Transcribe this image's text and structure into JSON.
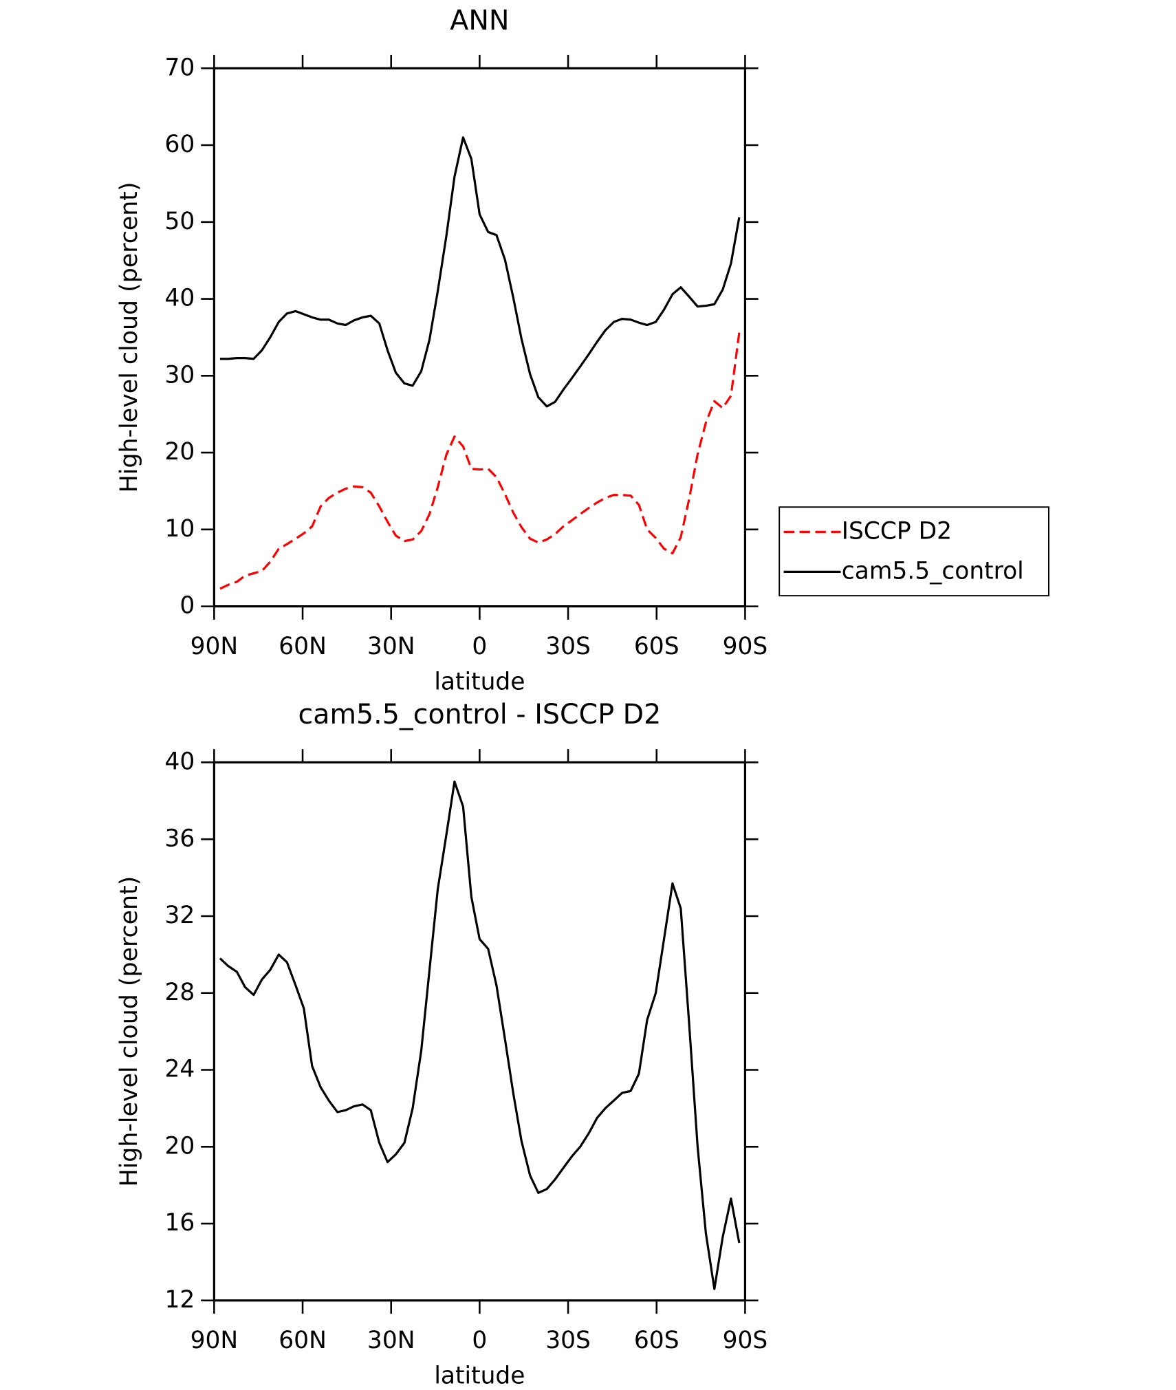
{
  "chart_data": [
    {
      "type": "line",
      "title": "ANN",
      "xlabel": "latitude",
      "ylabel": "High-level cloud (percent)",
      "x": [
        88,
        85.2,
        82.3,
        79.5,
        76.6,
        73.8,
        71.0,
        68.1,
        65.3,
        62.4,
        59.6,
        56.8,
        53.9,
        51.1,
        48.2,
        45.4,
        42.6,
        39.7,
        36.9,
        34.0,
        31.2,
        28.4,
        25.5,
        22.7,
        19.8,
        17.0,
        14.2,
        11.3,
        8.5,
        5.6,
        2.8,
        0.0,
        -2.9,
        -5.7,
        -8.6,
        -11.4,
        -14.2,
        -17.1,
        -19.9,
        -22.8,
        -25.6,
        -28.4,
        -31.3,
        -34.1,
        -37.0,
        -39.8,
        -42.6,
        -45.5,
        -48.3,
        -51.2,
        -54.0,
        -56.8,
        -59.7,
        -62.5,
        -65.4,
        -68.2,
        -71.0,
        -73.9,
        -76.7,
        -79.6,
        -82.4,
        -85.2,
        -88.0
      ],
      "series": [
        {
          "name": "ISCCP D2",
          "color": "#ff0000",
          "dash": true,
          "values": [
            2.3,
            2.8,
            3.2,
            4.0,
            4.3,
            4.6,
            5.8,
            7.5,
            8.1,
            8.8,
            9.5,
            10.4,
            13.0,
            14.1,
            14.8,
            15.3,
            15.6,
            15.5,
            14.8,
            13.0,
            11.0,
            9.2,
            8.5,
            8.7,
            9.8,
            12.0,
            15.5,
            19.7,
            22.1,
            20.8,
            17.9,
            17.8,
            17.9,
            16.8,
            14.6,
            12.2,
            10.3,
            8.8,
            8.3,
            8.7,
            9.4,
            10.4,
            11.2,
            12.0,
            12.8,
            13.5,
            14.1,
            14.5,
            14.5,
            14.4,
            13.2,
            10.0,
            8.9,
            7.5,
            6.9,
            9.0,
            13.9,
            19.8,
            23.9,
            26.7,
            25.8,
            27.4,
            35.6
          ]
        },
        {
          "name": "cam5.5_control",
          "color": "#000000",
          "dash": false,
          "values": [
            32.2,
            32.2,
            32.3,
            32.3,
            32.2,
            33.3,
            35.0,
            37.0,
            38.1,
            38.4,
            38.0,
            37.6,
            37.3,
            37.3,
            36.8,
            36.6,
            37.2,
            37.6,
            37.8,
            36.8,
            33.3,
            30.4,
            29.0,
            28.7,
            30.6,
            34.7,
            41.0,
            48.1,
            55.9,
            61.0,
            58.2,
            51.0,
            48.7,
            48.3,
            45.1,
            40.2,
            34.8,
            30.2,
            27.2,
            26.0,
            26.6,
            28.2,
            29.7,
            31.2,
            32.8,
            34.4,
            35.9,
            37.0,
            37.4,
            37.3,
            36.9,
            36.6,
            37.0,
            38.6,
            40.6,
            41.5,
            40.3,
            39.0,
            39.1,
            39.3,
            41.2,
            44.6,
            50.6
          ]
        }
      ],
      "xlim": [
        90,
        -90
      ],
      "xticks": [
        {
          "value": 90,
          "label": "90N"
        },
        {
          "value": 60,
          "label": "60N"
        },
        {
          "value": 30,
          "label": "30N"
        },
        0,
        {
          "value": -30,
          "label": "30S"
        },
        {
          "value": -60,
          "label": "60S"
        },
        {
          "value": -90,
          "label": "90S"
        }
      ],
      "ylim": [
        0,
        70
      ],
      "yticks": [
        0,
        10,
        20,
        30,
        40,
        50,
        60,
        70
      ],
      "legend": "right"
    },
    {
      "type": "line",
      "title": "cam5.5_control - ISCCP D2",
      "xlabel": "latitude",
      "ylabel": "High-level cloud (percent)",
      "x": [
        88,
        85.2,
        82.3,
        79.5,
        76.6,
        73.8,
        71.0,
        68.1,
        65.3,
        62.4,
        59.6,
        56.8,
        53.9,
        51.1,
        48.2,
        45.4,
        42.6,
        39.7,
        36.9,
        34.0,
        31.2,
        28.4,
        25.5,
        22.7,
        19.8,
        17.0,
        14.2,
        11.3,
        8.5,
        5.6,
        2.8,
        0.0,
        -2.9,
        -5.7,
        -8.6,
        -11.4,
        -14.2,
        -17.1,
        -19.9,
        -22.8,
        -25.6,
        -28.4,
        -31.3,
        -34.1,
        -37.0,
        -39.8,
        -42.6,
        -45.5,
        -48.3,
        -51.2,
        -54.0,
        -56.8,
        -59.7,
        -62.5,
        -65.4,
        -68.2,
        -71.0,
        -73.9,
        -76.7,
        -79.6,
        -82.4,
        -85.2,
        -88.0
      ],
      "color": "#000000",
      "values": [
        29.8,
        29.4,
        29.1,
        28.3,
        27.9,
        28.7,
        29.2,
        30.0,
        29.6,
        28.4,
        27.2,
        24.2,
        23.1,
        22.4,
        21.8,
        21.9,
        22.1,
        22.2,
        21.9,
        20.2,
        19.2,
        19.6,
        20.2,
        22.0,
        25.0,
        29.2,
        33.4,
        36.2,
        39.0,
        37.7,
        33.0,
        30.8,
        30.3,
        28.4,
        25.6,
        22.8,
        20.3,
        18.5,
        17.6,
        17.8,
        18.3,
        18.9,
        19.5,
        20.0,
        20.7,
        21.5,
        22.0,
        22.4,
        22.8,
        22.9,
        23.8,
        26.6,
        28.0,
        30.8,
        33.7,
        32.4,
        26.5,
        20.0,
        15.5,
        12.6,
        15.3,
        17.3,
        15.0
      ],
      "xlim": [
        90,
        -90
      ],
      "xticks": [
        {
          "value": 90,
          "label": "90N"
        },
        {
          "value": 60,
          "label": "60N"
        },
        {
          "value": 30,
          "label": "30N"
        },
        0,
        {
          "value": -30,
          "label": "30S"
        },
        {
          "value": -60,
          "label": "60S"
        },
        {
          "value": -90,
          "label": "90S"
        }
      ],
      "ylim": [
        12,
        40
      ],
      "yticks": [
        12,
        16,
        20,
        24,
        28,
        32,
        36,
        40
      ]
    }
  ]
}
